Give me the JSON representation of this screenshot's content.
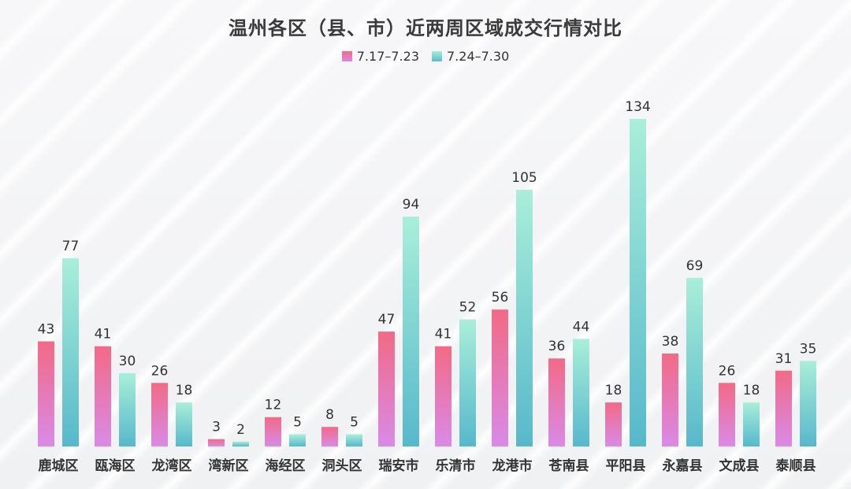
{
  "chart_data": {
    "type": "bar",
    "title": "温州各区（县、市）近两周区域成交行情对比",
    "categories": [
      "鹿城区",
      "瓯海区",
      "龙湾区",
      "湾新区",
      "海经区",
      "洞头区",
      "瑞安市",
      "乐清市",
      "龙港市",
      "苍南县",
      "平阳县",
      "永嘉县",
      "文成县",
      "泰顺县"
    ],
    "series": [
      {
        "name": "7.17–7.23",
        "values": [
          43,
          41,
          26,
          3,
          12,
          8,
          47,
          41,
          56,
          36,
          18,
          38,
          26,
          31
        ],
        "color_top": "#f26a86",
        "color_bottom": "#d98ae8"
      },
      {
        "name": "7.24–7.30",
        "values": [
          77,
          30,
          18,
          2,
          5,
          5,
          94,
          52,
          105,
          44,
          134,
          69,
          18,
          35
        ],
        "color_top": "#a9eed9",
        "color_bottom": "#57b8cb"
      }
    ],
    "ylim": [
      0,
      134
    ],
    "grid": false,
    "legend_position": "top-center"
  }
}
